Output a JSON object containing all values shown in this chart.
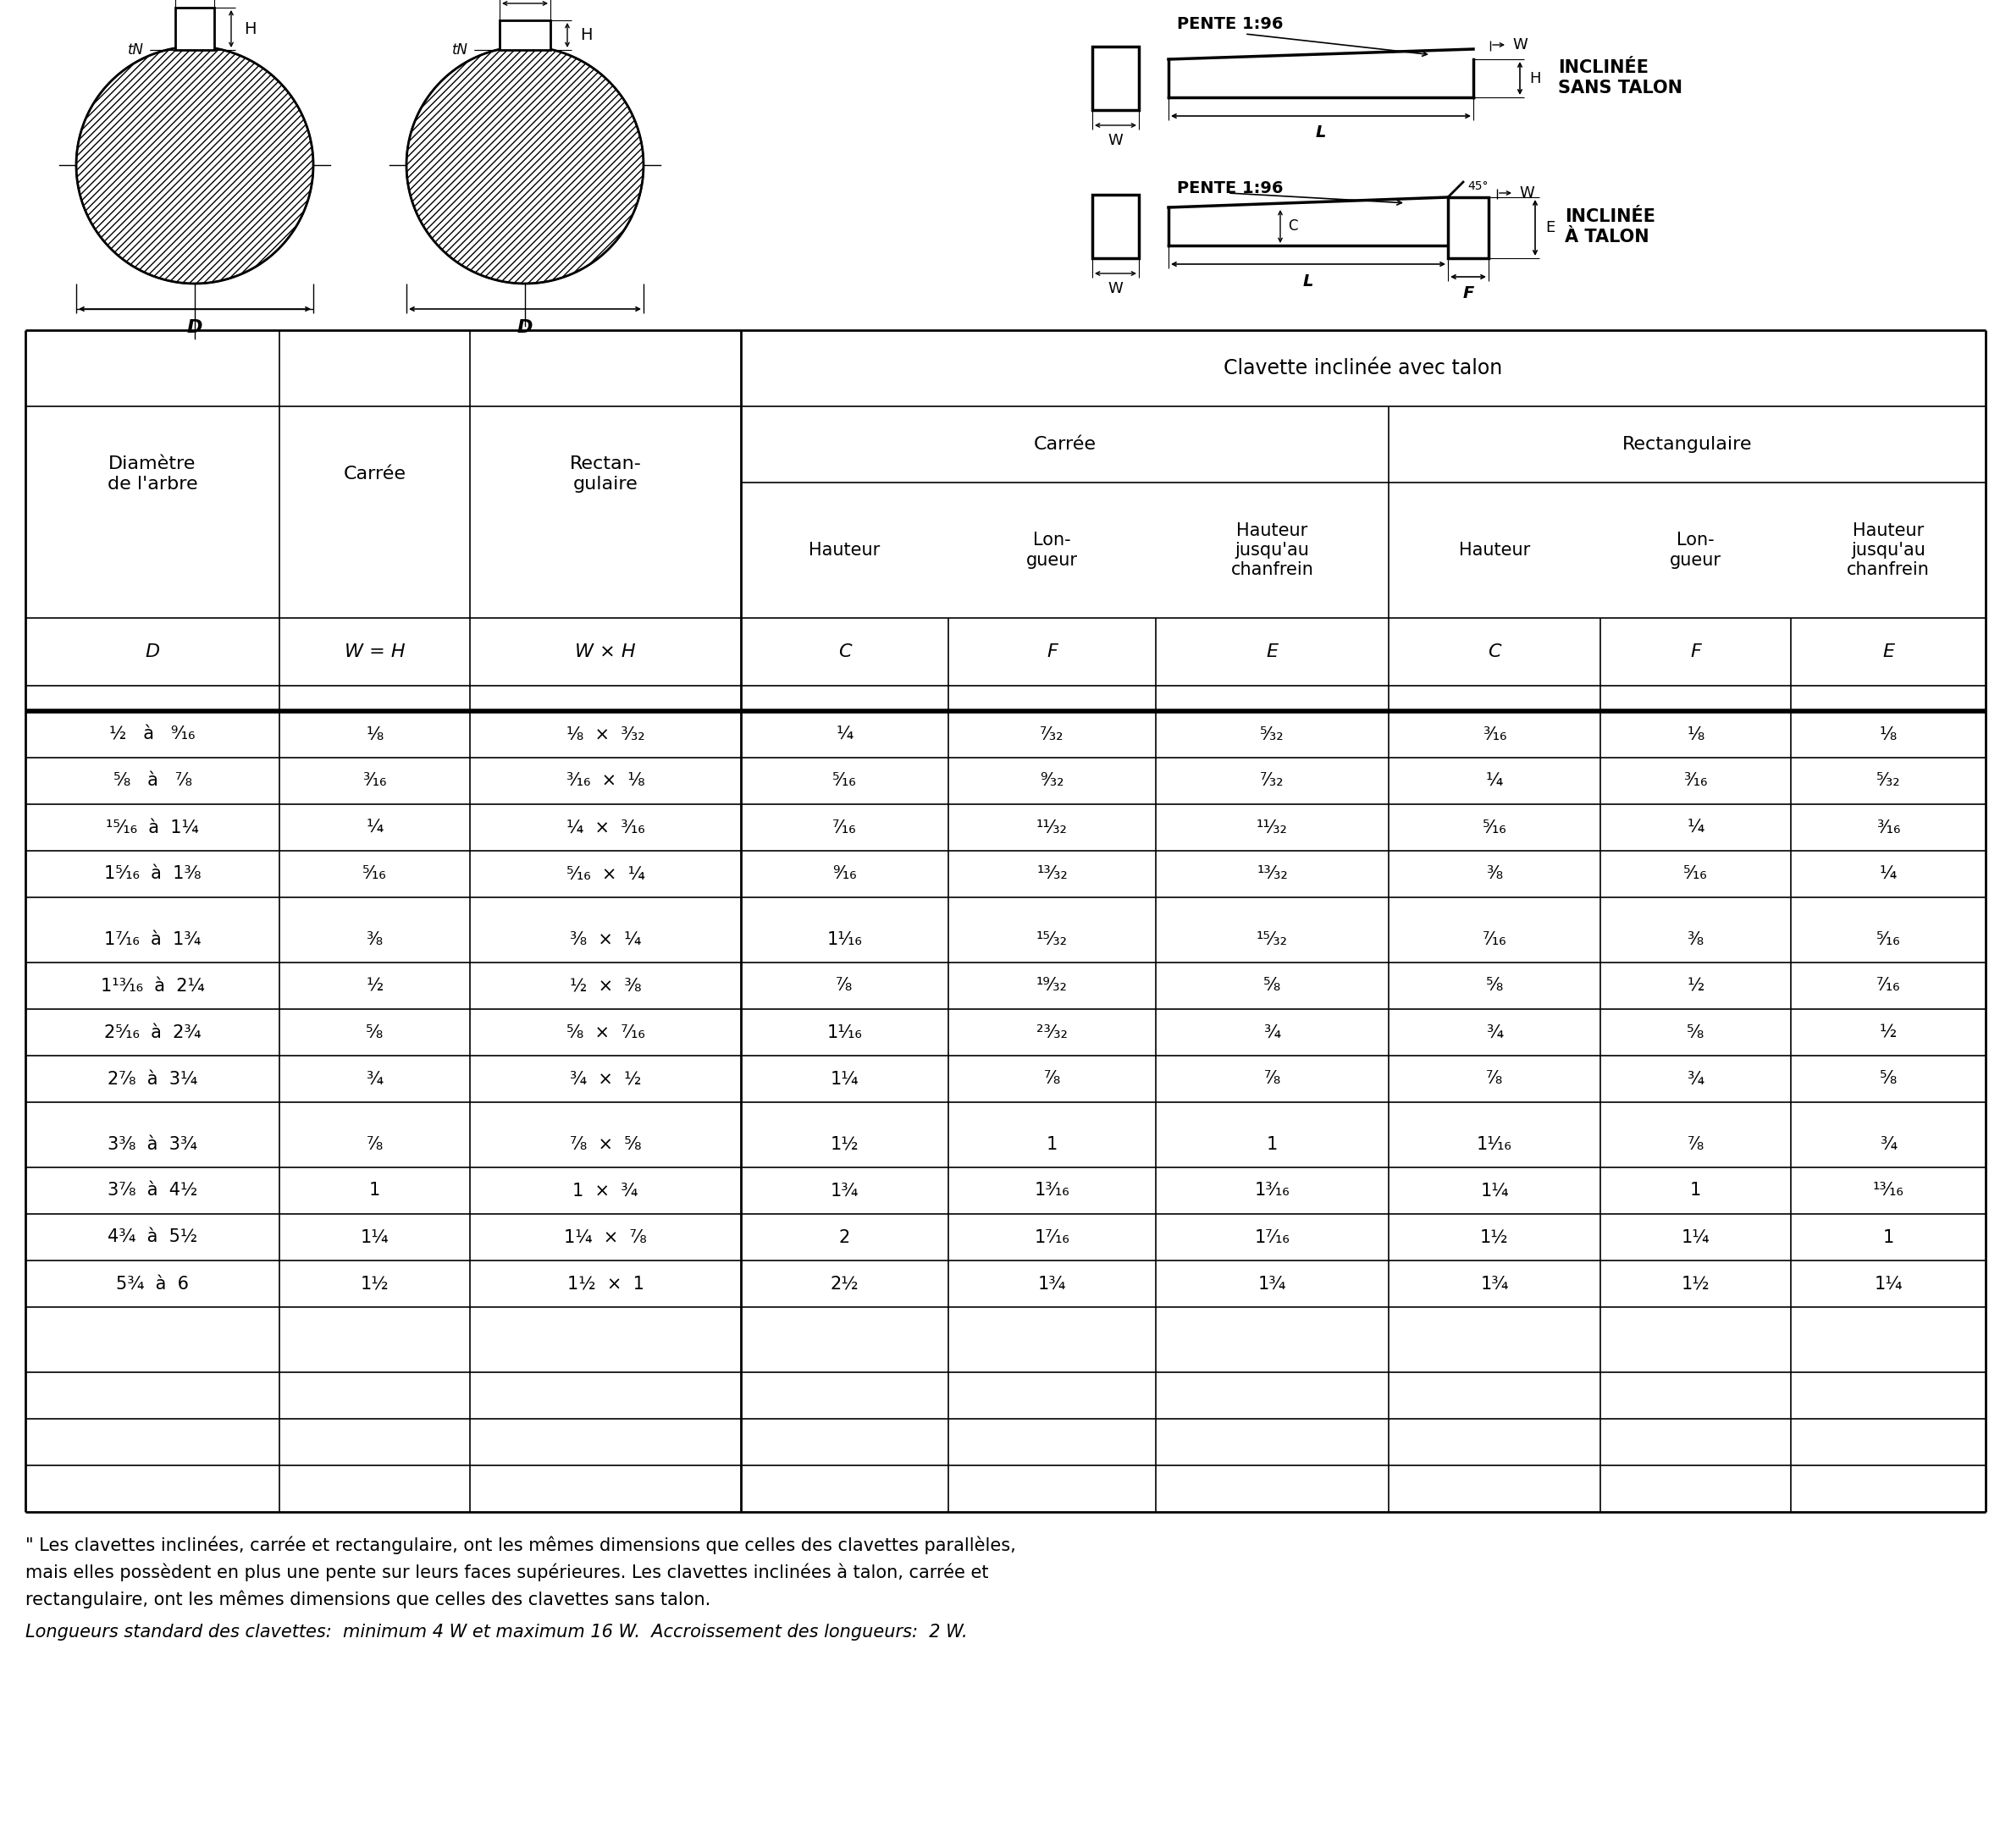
{
  "header_main": "Clavette inclinée avec talon",
  "header_carree": "Carrée",
  "header_rect": "Rectangulaire",
  "col_headers": [
    "Diamètre\nde l'arbre",
    "Carrée",
    "Rectan-\ngulaire",
    "Hauteur",
    "Lon-\ngueur",
    "Hauteur\njusqu'au\nchanfrein",
    "Hauteur",
    "Lon-\ngueur",
    "Hauteur\njusqu'au\nchanfrein"
  ],
  "col_labels": [
    "D",
    "W = H",
    "W × H",
    "C",
    "F",
    "E",
    "C",
    "F",
    "E"
  ],
  "rows": [
    [
      "½   à   ⁹⁄₁₆",
      "⅛",
      "⅛  ×  ³⁄₃₂",
      "¼",
      "⁷⁄₃₂",
      "⁵⁄₃₂",
      "³⁄₁₆",
      "⅛",
      "⅛"
    ],
    [
      "⅝   à   ⁷⁄₈",
      "³⁄₁₆",
      "³⁄₁₆  ×  ⅛",
      "⁵⁄₁₆",
      "⁹⁄₃₂",
      "⁷⁄₃₂",
      "¼",
      "³⁄₁₆",
      "⁵⁄₃₂"
    ],
    [
      "¹⁵⁄₁₆  à  1¼",
      "¼",
      "¼  ×  ³⁄₁₆",
      "⁷⁄₁₆",
      "¹¹⁄₃₂",
      "¹¹⁄₃₂",
      "⁵⁄₁₆",
      "¼",
      "³⁄₁₆"
    ],
    [
      "1⁵⁄₁₆  à  1³⁄₈",
      "⁵⁄₁₆",
      "⁵⁄₁₆  ×  ¼",
      "⁹⁄₁₆",
      "¹³⁄₃₂",
      "¹³⁄₃₂",
      "³⁄₈",
      "⁵⁄₁₆",
      "¼"
    ],
    [
      "1⁷⁄₁₆  à  1¾",
      "³⁄₈",
      "³⁄₈  ×  ¼",
      "1¹⁄₁₆",
      "¹⁵⁄₃₂",
      "¹⁵⁄₃₂",
      "⁷⁄₁₆",
      "³⁄₈",
      "⁵⁄₁₆"
    ],
    [
      "1¹³⁄₁₆  à  2¼",
      "½",
      "½  ×  ³⁄₈",
      "⁷⁄₈",
      "¹⁹⁄₃₂",
      "⅝",
      "⅝",
      "½",
      "⁷⁄₁₆"
    ],
    [
      "2⁵⁄₁₆  à  2¾",
      "⅝",
      "⅝  ×  ⁷⁄₁₆",
      "1¹⁄₁₆",
      "²³⁄₃₂",
      "¾",
      "¾",
      "⅝",
      "½"
    ],
    [
      "2⁷⁄₈  à  3¼",
      "¾",
      "¾  ×  ½",
      "1¼",
      "⁷⁄₈",
      "⁷⁄₈",
      "⁷⁄₈",
      "¾",
      "⅝"
    ],
    [
      "3³⁄₈  à  3¾",
      "⁷⁄₈",
      "⁷⁄₈  ×  ⅝",
      "1½",
      "1",
      "1",
      "1¹⁄₁₆",
      "⁷⁄₈",
      "¾"
    ],
    [
      "3⁷⁄₈  à  4½",
      "1",
      "1  ×  ¾",
      "1¾",
      "1³⁄₁₆",
      "1³⁄₁₆",
      "1¼",
      "1",
      "¹³⁄₁₆"
    ],
    [
      "4¾  à  5½",
      "1¼",
      "1¼  ×  ⁷⁄₈",
      "2",
      "1⁷⁄₁₆",
      "1⁷⁄₁₆",
      "1½",
      "1¼",
      "1"
    ],
    [
      "5¾  à  6",
      "1½",
      "1½  ×  1",
      "2½",
      "1¾",
      "1¾",
      "1¾",
      "1½",
      "1¼"
    ]
  ],
  "footnote1": "\" Les clavettes inclinées, carrée et rectangulaire, ont les mêmes dimensions que celles des clavettes parallèles,",
  "footnote2": "mais elles possèdent en plus une pente sur leurs faces supérieures. Les clavettes inclinées à talon, carrée et",
  "footnote3": "rectangulaire, ont les mêmes dimensions que celles des clavettes sans talon.",
  "footnote4_normal": "Longueurs standard des clavettes:  minimum 4 W et maximum 16 W.  Accroissement des longueurs:  2 W.",
  "bg_color": "#ffffff"
}
